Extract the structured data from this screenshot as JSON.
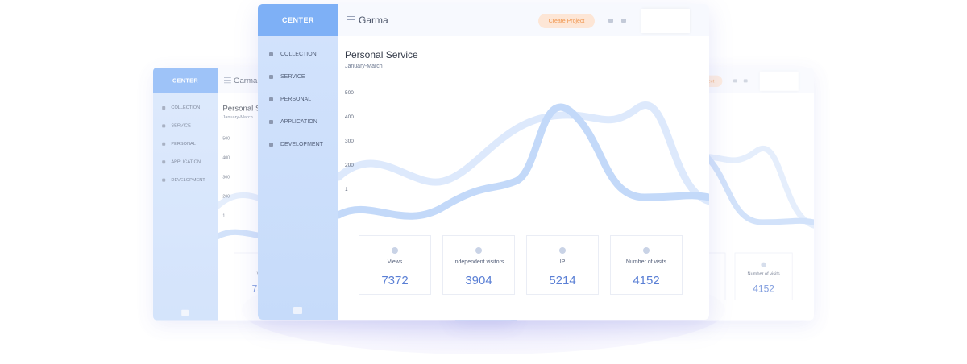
{
  "brand": "CENTER",
  "app_name": "Garma",
  "button": "Create Project",
  "menu": [
    "COLLECTION",
    "SERVICE",
    "PERSONAL",
    "APPLICATION",
    "DEVELOPMENT"
  ],
  "panel": {
    "title": "Personal Service",
    "subtitle": "January-March",
    "axis_labels": [
      "500",
      "400",
      "300",
      "200",
      "1"
    ]
  },
  "stats": [
    {
      "label": "Views",
      "value": "7372"
    },
    {
      "label": "Independent visitors",
      "value": "3904"
    },
    {
      "label": "IP",
      "value": "5214"
    },
    {
      "label": "Number of visits",
      "value": "4152"
    }
  ]
}
